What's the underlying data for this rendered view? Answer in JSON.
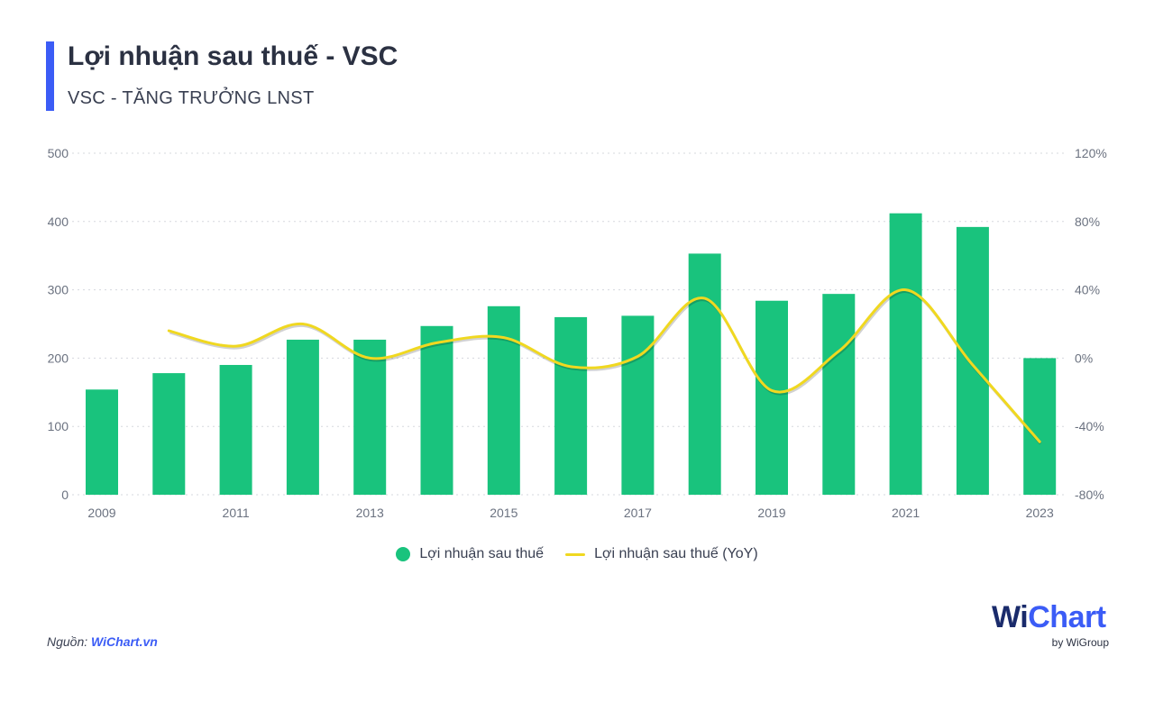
{
  "header": {
    "title": "Lợi nhuận sau thuế - VSC",
    "subtitle": "VSC - TĂNG TRƯỞNG LNST"
  },
  "colors": {
    "accent": "#3b5cf6",
    "bar": "#19c37d",
    "line": "#f0d820",
    "grid": "#d5d8de",
    "axis_text": "#6b7280"
  },
  "chart_data": {
    "type": "bar",
    "title": "Lợi nhuận sau thuế - VSC",
    "subtitle": "VSC - TĂNG TRƯỞNG LNST",
    "categories": [
      "2009",
      "2010",
      "2011",
      "2012",
      "2013",
      "2014",
      "2015",
      "2016",
      "2017",
      "2018",
      "2019",
      "2020",
      "2021",
      "2022",
      "2023"
    ],
    "x_tick_labels": [
      "2009",
      "2011",
      "2013",
      "2015",
      "2017",
      "2019",
      "2021",
      "2023"
    ],
    "series": [
      {
        "name": "Lợi nhuận sau thuế",
        "type": "bar",
        "axis": "left",
        "values": [
          154,
          178,
          190,
          227,
          227,
          247,
          276,
          260,
          262,
          353,
          284,
          294,
          412,
          392,
          200
        ]
      },
      {
        "name": "Lợi nhuận sau thuế (YoY)",
        "type": "line",
        "axis": "right",
        "values": [
          null,
          16,
          7,
          20,
          0,
          9,
          12,
          -5,
          1,
          35,
          -19,
          4,
          40,
          -4,
          -49
        ]
      }
    ],
    "y_left": {
      "min": 0,
      "max": 500,
      "ticks": [
        "0",
        "100",
        "200",
        "300",
        "400",
        "500"
      ]
    },
    "y_right": {
      "min": -80,
      "max": 120,
      "ticks": [
        "-80%",
        "-40%",
        "0%",
        "40%",
        "80%",
        "120%"
      ]
    },
    "grid": true,
    "legend_position": "bottom-center"
  },
  "legend": {
    "bar_label": "Lợi nhuận sau thuế",
    "line_label": "Lợi nhuận sau thuế (YoY)"
  },
  "footer": {
    "source_prefix": "Nguồn: ",
    "source_link": "WiChart.vn",
    "logo_wi": "Wi",
    "logo_chart": "Chart",
    "logo_by": "by WiGroup"
  }
}
